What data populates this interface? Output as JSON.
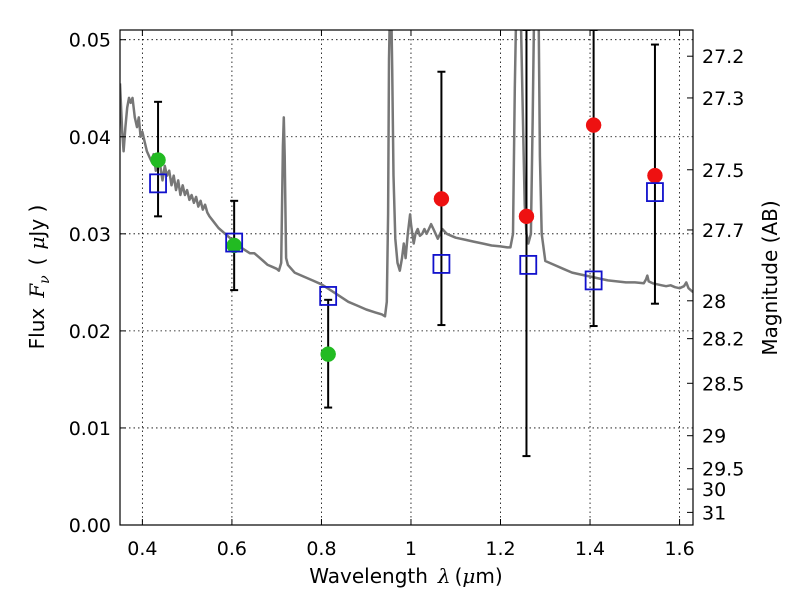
{
  "chart_data": {
    "type": "scatter",
    "title": "",
    "xlabel": "Wavelength",
    "xlabel_symbol": "λ",
    "xlabel_unit_open": "(",
    "xlabel_unit_mu": "μ",
    "xlabel_unit_rest": "m)",
    "ylabel": "Flux",
    "ylabel_symbol": "F",
    "ylabel_subscript": "ν",
    "ylabel_unit_open": "(",
    "ylabel_unit_mu": "μ",
    "ylabel_unit_rest": "Jy )",
    "y2label": "Magnitude (AB)",
    "xlim": [
      0.35,
      1.63
    ],
    "ylim": [
      0.0,
      0.051
    ],
    "grid": true,
    "x_ticks": [
      {
        "value": 0.4,
        "label": "0.4"
      },
      {
        "value": 0.6,
        "label": "0.6"
      },
      {
        "value": 0.8,
        "label": "0.8"
      },
      {
        "value": 1.0,
        "label": "1"
      },
      {
        "value": 1.2,
        "label": "1.2"
      },
      {
        "value": 1.4,
        "label": "1.4"
      },
      {
        "value": 1.6,
        "label": "1.6"
      }
    ],
    "y_ticks": [
      {
        "value": 0.0,
        "label": "0.00"
      },
      {
        "value": 0.01,
        "label": "0.01"
      },
      {
        "value": 0.02,
        "label": "0.02"
      },
      {
        "value": 0.03,
        "label": "0.03"
      },
      {
        "value": 0.04,
        "label": "0.04"
      },
      {
        "value": 0.05,
        "label": "0.05"
      }
    ],
    "y2_ticks": [
      {
        "label": "27.2",
        "flux": 0.0483
      },
      {
        "label": "27.3",
        "flux": 0.044
      },
      {
        "label": "27.5",
        "flux": 0.0366
      },
      {
        "label": "27.7",
        "flux": 0.0304
      },
      {
        "label": "28",
        "flux": 0.0231
      },
      {
        "label": "28.2",
        "flux": 0.0192
      },
      {
        "label": "28.5",
        "flux": 0.0146
      },
      {
        "label": "29",
        "flux": 0.0092
      },
      {
        "label": "29.5",
        "flux": 0.0058
      },
      {
        "label": "30",
        "flux": 0.0037
      },
      {
        "label": "31",
        "flux": 0.0013
      }
    ],
    "model_spectrum": {
      "name": "",
      "color": "#777777",
      "points": [
        [
          0.35,
          0.0455
        ],
        [
          0.355,
          0.0405
        ],
        [
          0.358,
          0.0385
        ],
        [
          0.362,
          0.041
        ],
        [
          0.366,
          0.043
        ],
        [
          0.37,
          0.044
        ],
        [
          0.374,
          0.0435
        ],
        [
          0.378,
          0.044
        ],
        [
          0.383,
          0.042
        ],
        [
          0.388,
          0.041
        ],
        [
          0.392,
          0.042
        ],
        [
          0.396,
          0.04
        ],
        [
          0.4,
          0.0405
        ],
        [
          0.405,
          0.0395
        ],
        [
          0.41,
          0.0385
        ],
        [
          0.415,
          0.038
        ],
        [
          0.42,
          0.0375
        ],
        [
          0.425,
          0.0382
        ],
        [
          0.43,
          0.0365
        ],
        [
          0.435,
          0.0375
        ],
        [
          0.44,
          0.037
        ],
        [
          0.445,
          0.0355
        ],
        [
          0.45,
          0.037
        ],
        [
          0.455,
          0.036
        ],
        [
          0.46,
          0.0365
        ],
        [
          0.465,
          0.035
        ],
        [
          0.47,
          0.036
        ],
        [
          0.475,
          0.0345
        ],
        [
          0.48,
          0.0355
        ],
        [
          0.485,
          0.034
        ],
        [
          0.49,
          0.035
        ],
        [
          0.495,
          0.034
        ],
        [
          0.5,
          0.0345
        ],
        [
          0.505,
          0.0335
        ],
        [
          0.51,
          0.034
        ],
        [
          0.515,
          0.0332
        ],
        [
          0.52,
          0.0338
        ],
        [
          0.525,
          0.0328
        ],
        [
          0.53,
          0.0334
        ],
        [
          0.535,
          0.0325
        ],
        [
          0.54,
          0.033
        ],
        [
          0.545,
          0.0322
        ],
        [
          0.55,
          0.0318
        ],
        [
          0.56,
          0.0312
        ],
        [
          0.57,
          0.0306
        ],
        [
          0.58,
          0.0302
        ],
        [
          0.59,
          0.0298
        ],
        [
          0.6,
          0.0294
        ],
        [
          0.61,
          0.029
        ],
        [
          0.62,
          0.0286
        ],
        [
          0.63,
          0.0283
        ],
        [
          0.64,
          0.028
        ],
        [
          0.65,
          0.028
        ],
        [
          0.66,
          0.0276
        ],
        [
          0.67,
          0.0272
        ],
        [
          0.68,
          0.0268
        ],
        [
          0.69,
          0.0266
        ],
        [
          0.7,
          0.0264
        ],
        [
          0.705,
          0.0262
        ],
        [
          0.71,
          0.027
        ],
        [
          0.714,
          0.039
        ],
        [
          0.716,
          0.042
        ],
        [
          0.718,
          0.038
        ],
        [
          0.721,
          0.0275
        ],
        [
          0.725,
          0.0268
        ],
        [
          0.74,
          0.026
        ],
        [
          0.76,
          0.0256
        ],
        [
          0.78,
          0.0252
        ],
        [
          0.8,
          0.0248
        ],
        [
          0.82,
          0.0242
        ],
        [
          0.84,
          0.0236
        ],
        [
          0.86,
          0.023
        ],
        [
          0.88,
          0.0226
        ],
        [
          0.9,
          0.0222
        ],
        [
          0.92,
          0.0219
        ],
        [
          0.935,
          0.0217
        ],
        [
          0.942,
          0.0215
        ],
        [
          0.946,
          0.023
        ],
        [
          0.949,
          0.032
        ],
        [
          0.951,
          0.048
        ],
        [
          0.953,
          0.053
        ],
        [
          0.956,
          0.053
        ],
        [
          0.958,
          0.047
        ],
        [
          0.961,
          0.036
        ],
        [
          0.965,
          0.0295
        ],
        [
          0.97,
          0.027
        ],
        [
          0.975,
          0.0262
        ],
        [
          0.98,
          0.0275
        ],
        [
          0.984,
          0.029
        ],
        [
          0.988,
          0.0275
        ],
        [
          0.993,
          0.03
        ],
        [
          0.998,
          0.032
        ],
        [
          1.0,
          0.031
        ],
        [
          1.003,
          0.03
        ],
        [
          1.006,
          0.029
        ],
        [
          1.01,
          0.03
        ],
        [
          1.015,
          0.0305
        ],
        [
          1.02,
          0.0298
        ],
        [
          1.025,
          0.03
        ],
        [
          1.03,
          0.0305
        ],
        [
          1.035,
          0.03
        ],
        [
          1.04,
          0.0305
        ],
        [
          1.045,
          0.031
        ],
        [
          1.05,
          0.0305
        ],
        [
          1.055,
          0.03
        ],
        [
          1.06,
          0.0295
        ],
        [
          1.065,
          0.03
        ],
        [
          1.07,
          0.0305
        ],
        [
          1.08,
          0.03
        ],
        [
          1.09,
          0.0298
        ],
        [
          1.1,
          0.0296
        ],
        [
          1.12,
          0.0294
        ],
        [
          1.14,
          0.0292
        ],
        [
          1.16,
          0.029
        ],
        [
          1.18,
          0.0288
        ],
        [
          1.2,
          0.0287
        ],
        [
          1.215,
          0.0286
        ],
        [
          1.222,
          0.0286
        ],
        [
          1.228,
          0.03
        ],
        [
          1.232,
          0.045
        ],
        [
          1.235,
          0.053
        ],
        [
          1.245,
          0.053
        ],
        [
          1.25,
          0.042
        ],
        [
          1.254,
          0.033
        ],
        [
          1.258,
          0.03
        ],
        [
          1.262,
          0.029
        ],
        [
          1.268,
          0.03
        ],
        [
          1.272,
          0.042
        ],
        [
          1.275,
          0.053
        ],
        [
          1.285,
          0.053
        ],
        [
          1.288,
          0.038
        ],
        [
          1.292,
          0.03
        ],
        [
          1.3,
          0.0272
        ],
        [
          1.32,
          0.0268
        ],
        [
          1.34,
          0.0264
        ],
        [
          1.36,
          0.026
        ],
        [
          1.38,
          0.0258
        ],
        [
          1.4,
          0.0256
        ],
        [
          1.42,
          0.0254
        ],
        [
          1.44,
          0.0252
        ],
        [
          1.46,
          0.0251
        ],
        [
          1.48,
          0.025
        ],
        [
          1.5,
          0.025
        ],
        [
          1.52,
          0.0249
        ],
        [
          1.525,
          0.0253
        ],
        [
          1.528,
          0.0257
        ],
        [
          1.531,
          0.0251
        ],
        [
          1.54,
          0.0249
        ],
        [
          1.55,
          0.0248
        ],
        [
          1.56,
          0.0247
        ],
        [
          1.57,
          0.0246
        ],
        [
          1.58,
          0.0247
        ],
        [
          1.59,
          0.0245
        ],
        [
          1.6,
          0.0244
        ],
        [
          1.61,
          0.0246
        ],
        [
          1.615,
          0.025
        ],
        [
          1.62,
          0.0244
        ],
        [
          1.63,
          0.024
        ]
      ]
    },
    "series": [
      {
        "name": "",
        "marker": "circle",
        "color": "#22bb22",
        "points": [
          {
            "x": 0.435,
            "y": 0.0376,
            "err_lo": 0.0318,
            "err_hi": 0.0436
          },
          {
            "x": 0.605,
            "y": 0.0288,
            "err_lo": 0.0242,
            "err_hi": 0.0334
          },
          {
            "x": 0.815,
            "y": 0.0176,
            "err_lo": 0.0121,
            "err_hi": 0.0232
          }
        ]
      },
      {
        "name": "",
        "marker": "circle",
        "color": "#ee1111",
        "points": [
          {
            "x": 1.068,
            "y": 0.0336,
            "err_lo": 0.0206,
            "err_hi": 0.0467
          },
          {
            "x": 1.258,
            "y": 0.0318,
            "err_lo": 0.0071,
            "err_hi": 0.051
          },
          {
            "x": 1.408,
            "y": 0.0412,
            "err_lo": 0.0205,
            "err_hi": 0.051
          },
          {
            "x": 1.545,
            "y": 0.036,
            "err_lo": 0.0228,
            "err_hi": 0.0495
          }
        ]
      },
      {
        "name": "",
        "marker": "square",
        "color": "#1111cc",
        "points": [
          {
            "x": 0.435,
            "y": 0.0352
          },
          {
            "x": 0.605,
            "y": 0.0291
          },
          {
            "x": 0.815,
            "y": 0.0236
          },
          {
            "x": 1.068,
            "y": 0.0269
          },
          {
            "x": 1.262,
            "y": 0.0268
          },
          {
            "x": 1.408,
            "y": 0.0252
          },
          {
            "x": 1.545,
            "y": 0.0343
          }
        ]
      }
    ]
  }
}
